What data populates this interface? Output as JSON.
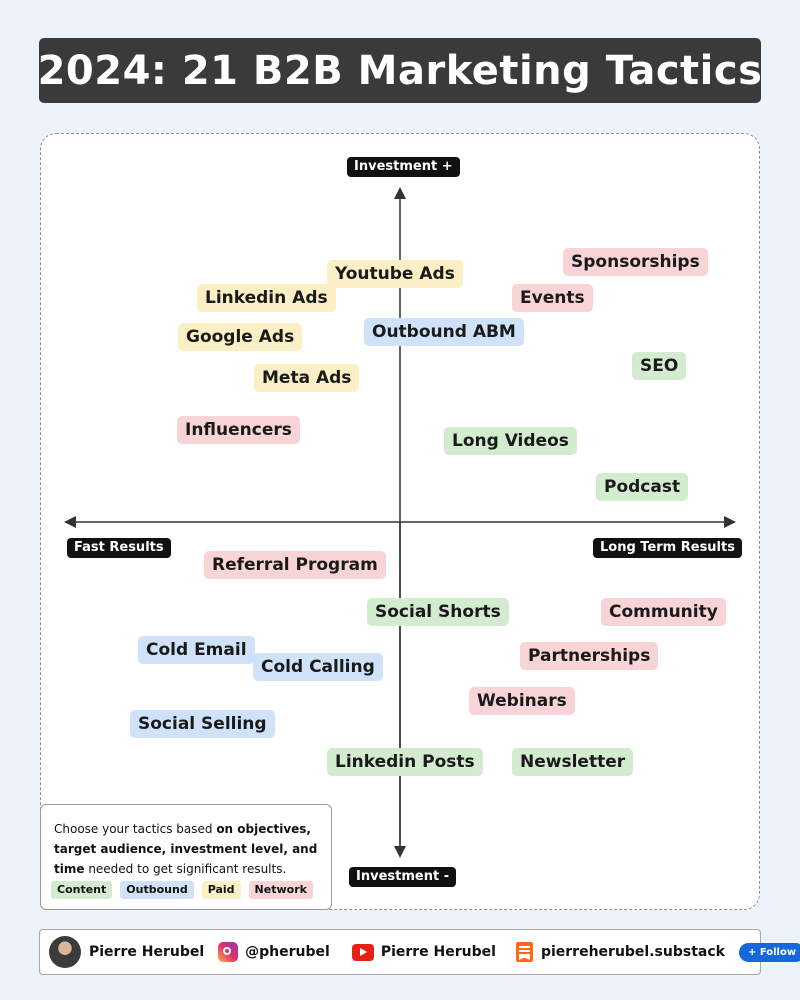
{
  "title": "2024: 21 B2B Marketing Tactics",
  "axes": {
    "top": "Investment +",
    "bottom": "Investment -",
    "left": "Fast Results",
    "right": "Long Term Results"
  },
  "tactics": [
    {
      "label": "Youtube Ads",
      "category": "paid"
    },
    {
      "label": "Sponsorships",
      "category": "network"
    },
    {
      "label": "Linkedin Ads",
      "category": "paid"
    },
    {
      "label": "Events",
      "category": "network"
    },
    {
      "label": "Outbound ABM",
      "category": "outbound"
    },
    {
      "label": "Google Ads",
      "category": "paid"
    },
    {
      "label": "SEO",
      "category": "content"
    },
    {
      "label": "Meta Ads",
      "category": "paid"
    },
    {
      "label": "Influencers",
      "category": "network"
    },
    {
      "label": "Long Videos",
      "category": "content"
    },
    {
      "label": "Podcast",
      "category": "content"
    },
    {
      "label": "Referral Program",
      "category": "network"
    },
    {
      "label": "Social Shorts",
      "category": "content"
    },
    {
      "label": "Community",
      "category": "network"
    },
    {
      "label": "Cold Email",
      "category": "outbound"
    },
    {
      "label": "Cold Calling",
      "category": "outbound"
    },
    {
      "label": "Partnerships",
      "category": "network"
    },
    {
      "label": "Webinars",
      "category": "network"
    },
    {
      "label": "Social Selling",
      "category": "outbound"
    },
    {
      "label": "Linkedin Posts",
      "category": "content"
    },
    {
      "label": "Newsletter",
      "category": "content"
    }
  ],
  "legend": {
    "text_1": "Choose your tactics based ",
    "text_bold_1": "on objectives,",
    "text_bold_2": "target audience, investment level, and",
    "text_bold_3": "time",
    "text_2": " needed to get significant results.",
    "categories": [
      {
        "label": "Content",
        "color": "#d3ecd0"
      },
      {
        "label": "Outbound",
        "color": "#cfe2f7"
      },
      {
        "label": "Paid",
        "color": "#fbefc6"
      },
      {
        "label": "Network",
        "color": "#f8d4d6"
      }
    ]
  },
  "footer": {
    "name": "Pierre Herubel",
    "instagram": "@pherubel",
    "youtube": "Pierre Herubel",
    "substack": "pierreherubel.substack",
    "follow_label": "+ Follow",
    "icons": [
      "avatar",
      "instagram-icon",
      "youtube-icon",
      "substack-icon"
    ]
  }
}
